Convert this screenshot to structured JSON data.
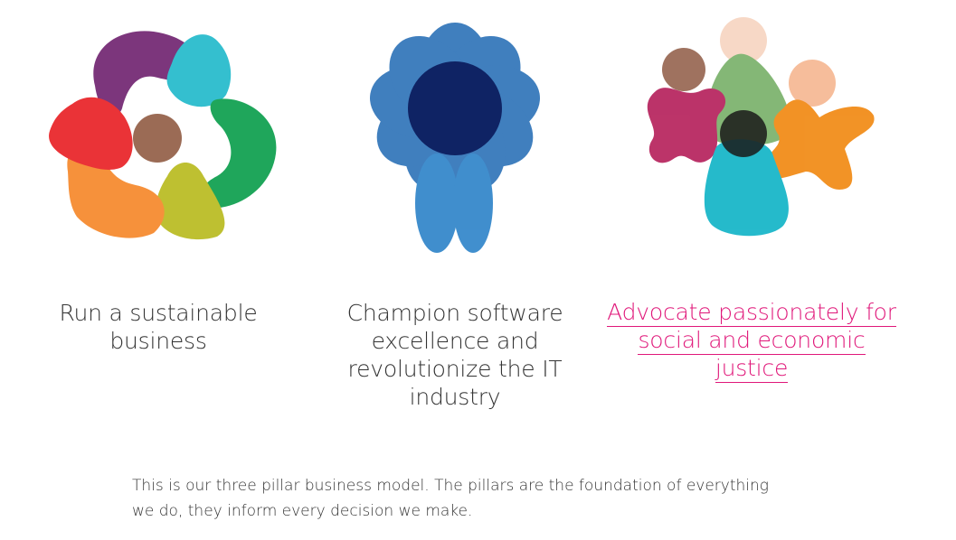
{
  "pillars": [
    {
      "title": "Run a sustainable business",
      "icon": "colorful-circle-of-blobs-icon",
      "link": false
    },
    {
      "title": "Champion software excellence and revolutionize the IT industry",
      "icon": "blue-flower-figure-icon",
      "link": false
    },
    {
      "title": "Advocate passionately for social and economic justice",
      "icon": "group-of-colorful-figures-icon",
      "link": true
    }
  ],
  "description": "This is our three pillar business model. The pillars are the foundation of everything we do, they inform every decision we make.",
  "colors": {
    "text": "#333333",
    "link": "#e0187a"
  }
}
